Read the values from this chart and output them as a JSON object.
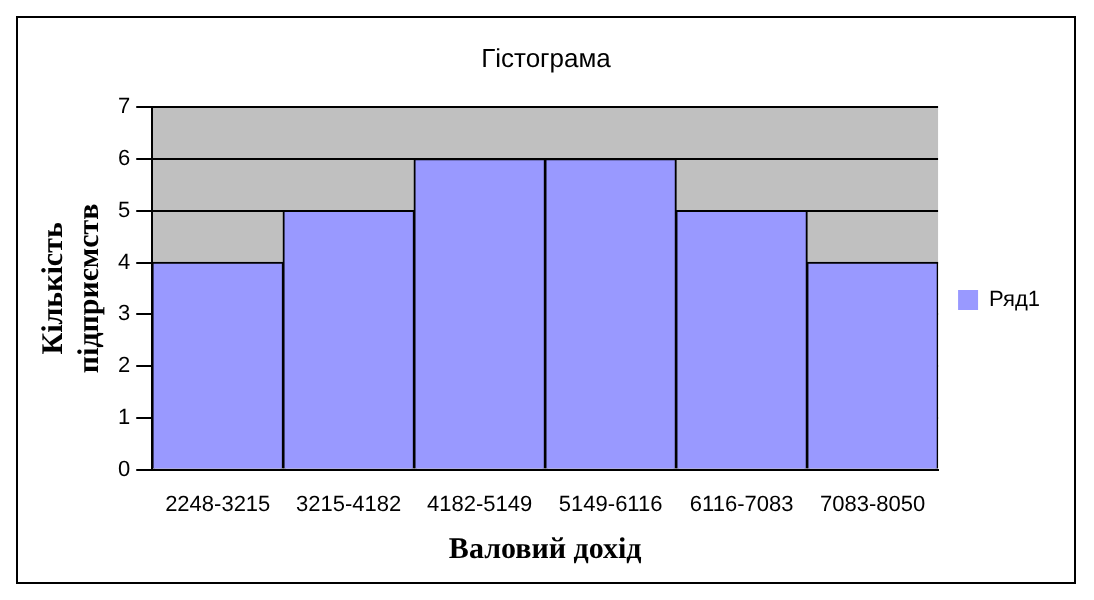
{
  "chart_data": {
    "type": "bar",
    "title": "Гістограма",
    "xlabel": "Валовий дохід",
    "ylabel": "Кількість підприємств",
    "categories": [
      "2248-3215",
      "3215-4182",
      "4182-5149",
      "5149-6116",
      "6116-7083",
      "7083-8050"
    ],
    "series": [
      {
        "name": "Ряд1",
        "color": "#9999ff",
        "values": [
          4,
          5,
          6,
          6,
          5,
          4
        ]
      }
    ],
    "ylim": [
      0,
      7
    ],
    "yticks": [
      0,
      1,
      2,
      3,
      4,
      5,
      6,
      7
    ],
    "grid": "y",
    "legend": "right"
  }
}
